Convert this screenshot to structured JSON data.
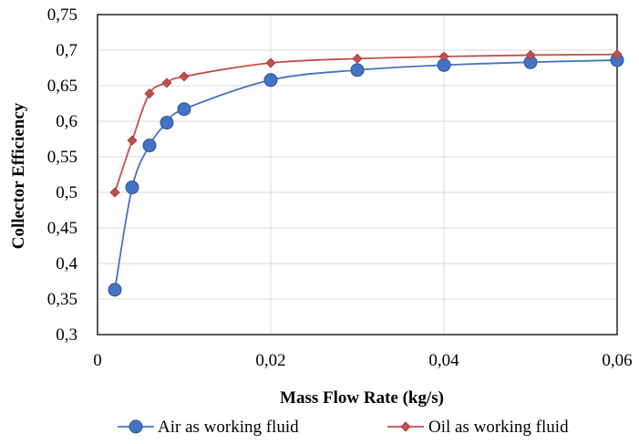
{
  "chart_data": {
    "type": "line",
    "title": "",
    "xlabel": "Mass Flow Rate (kg/s)",
    "ylabel": "Collector Efficiency",
    "xlim": [
      0,
      0.06
    ],
    "ylim": [
      0.3,
      0.75
    ],
    "x_ticks": [
      "0",
      "0,02",
      "0,04",
      "0,06"
    ],
    "y_ticks": [
      "0,3",
      "0,35",
      "0,4",
      "0,45",
      "0,5",
      "0,55",
      "0,6",
      "0,65",
      "0,7",
      "0,75"
    ],
    "grid": true,
    "legend_position": "bottom",
    "series": [
      {
        "name": "Air as working fluid",
        "color": "#4472C4",
        "marker": "circle",
        "x": [
          0.002,
          0.004,
          0.006,
          0.008,
          0.01,
          0.02,
          0.03,
          0.04,
          0.05,
          0.06
        ],
        "y": [
          0.363,
          0.507,
          0.566,
          0.598,
          0.617,
          0.658,
          0.672,
          0.679,
          0.683,
          0.686
        ]
      },
      {
        "name": "Oil as working fluid",
        "color": "#C0504D",
        "marker": "diamond",
        "x": [
          0.002,
          0.004,
          0.006,
          0.008,
          0.01,
          0.02,
          0.03,
          0.04,
          0.05,
          0.06
        ],
        "y": [
          0.5,
          0.573,
          0.639,
          0.654,
          0.663,
          0.682,
          0.688,
          0.691,
          0.693,
          0.694
        ]
      }
    ]
  }
}
